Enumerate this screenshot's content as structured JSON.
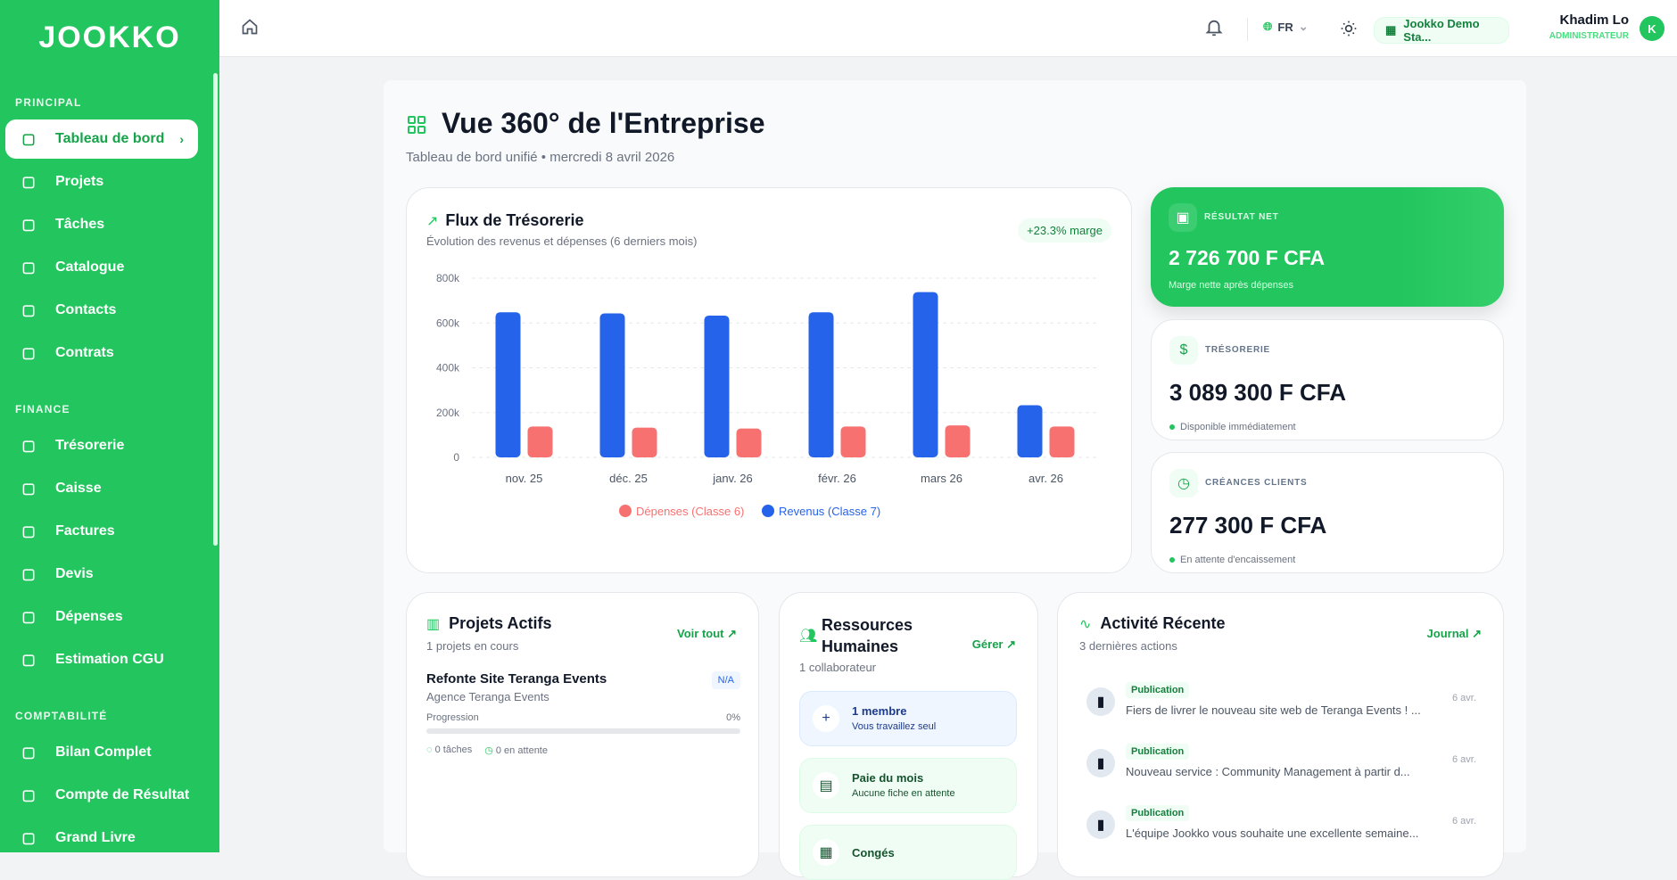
{
  "sidebar": {
    "logo": "JOOKKO",
    "sections": [
      {
        "label": "PRINCIPAL",
        "items": [
          {
            "label": "Tableau de bord",
            "icon": "dashboard-icon",
            "active": true
          },
          {
            "label": "Projets",
            "icon": "folder-icon"
          },
          {
            "label": "Tâches",
            "icon": "list-check-icon"
          },
          {
            "label": "Catalogue",
            "icon": "package-icon"
          },
          {
            "label": "Contacts",
            "icon": "users-icon"
          },
          {
            "label": "Contrats",
            "icon": "scroll-icon"
          }
        ]
      },
      {
        "label": "FINANCE",
        "items": [
          {
            "label": "Trésorerie",
            "icon": "bank-icon"
          },
          {
            "label": "Caisse",
            "icon": "banknote-icon"
          },
          {
            "label": "Factures",
            "icon": "file-text-icon"
          },
          {
            "label": "Devis",
            "icon": "clipboard-icon"
          },
          {
            "label": "Dépenses",
            "icon": "receipt-dollar-icon"
          },
          {
            "label": "Estimation CGU",
            "icon": "piggy-bank-icon"
          }
        ]
      },
      {
        "label": "COMPTABILITÉ",
        "items": [
          {
            "label": "Bilan Complet",
            "icon": "pie-chart-icon"
          },
          {
            "label": "Compte de Résultat",
            "icon": "bar-chart-icon"
          },
          {
            "label": "Grand Livre",
            "icon": "book-icon"
          }
        ]
      }
    ]
  },
  "header": {
    "lang": "FR",
    "company": "Jookko Demo Sta...",
    "user_name": "Khadim Lo",
    "user_role": "ADMINISTRATEUR",
    "avatar": "K"
  },
  "page": {
    "title": "Vue 360° de l'Entreprise",
    "subtitle": "Tableau de bord unifié • mercredi 8 avril 2026"
  },
  "cashflow": {
    "title": "Flux de Trésorerie",
    "subtitle": "Évolution des revenus et dépenses (6 derniers mois)",
    "badge": "+23.3% marge"
  },
  "chart_data": {
    "type": "bar",
    "categories": [
      "nov. 25",
      "déc. 25",
      "janv. 26",
      "févr. 26",
      "mars 26",
      "avr. 26"
    ],
    "series": [
      {
        "name": "Revenus (Classe 7)",
        "color": "#2563eb",
        "values": [
          648000,
          643000,
          633000,
          648000,
          738000,
          233000
        ]
      },
      {
        "name": "Dépenses (Classe 6)",
        "color": "#f87171",
        "values": [
          138000,
          133000,
          129000,
          138000,
          143000,
          138000
        ]
      }
    ],
    "yticks": [
      "0",
      "200k",
      "400k",
      "600k",
      "800k"
    ],
    "ylim": [
      0,
      800000
    ],
    "grid": true,
    "legend": "bottom"
  },
  "kpis": [
    {
      "label": "RÉSULTAT NET",
      "value": "2 726 700 F CFA",
      "foot": "Marge nette après dépenses"
    },
    {
      "label": "TRÉSORERIE",
      "value": "3 089 300 F CFA",
      "foot": "Disponible immédiatement"
    },
    {
      "label": "CRÉANCES CLIENTS",
      "value": "277 300 F CFA",
      "foot": "En attente d'encaissement"
    }
  ],
  "projects": {
    "title": "Projets Actifs",
    "subtitle": "1 projets en cours",
    "link": "Voir tout ↗",
    "item": {
      "name": "Refonte Site Teranga Events",
      "client": "Agence Teranga Events",
      "badge": "N/A",
      "progress_label": "Progression",
      "progress": "0%",
      "tasks": "0 tâches",
      "pending": "0 en attente"
    }
  },
  "hr": {
    "title1": "Ressources",
    "title2": "Humaines",
    "subtitle": "1 collaborateur",
    "link": "Gérer ↗",
    "items": [
      {
        "title": "1 membre",
        "sub": "Vous travaillez seul"
      },
      {
        "title": "Paie du mois",
        "sub": "Aucune fiche en attente"
      },
      {
        "title": "Congés",
        "sub": ""
      }
    ]
  },
  "activity": {
    "title": "Activité Récente",
    "subtitle": "3 dernières actions",
    "link": "Journal ↗",
    "items": [
      {
        "tag": "Publication",
        "text": "Fiers de livrer le nouveau site web de Teranga Events ! ...",
        "date": "6 avr."
      },
      {
        "tag": "Publication",
        "text": "Nouveau service : Community Management à partir d...",
        "date": "6 avr."
      },
      {
        "tag": "Publication",
        "text": "L'équipe Jookko vous souhaite une excellente semaine...",
        "date": "6 avr."
      }
    ]
  }
}
